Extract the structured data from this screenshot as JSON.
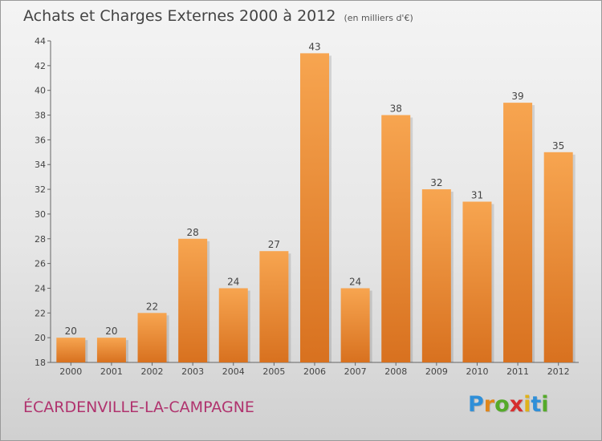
{
  "chart_data": {
    "type": "bar",
    "title": "Achats et Charges Externes 2000 à 2012",
    "subtitle": "(en milliers d'€)",
    "xlabel": "",
    "ylabel": "",
    "categories": [
      "2000",
      "2001",
      "2002",
      "2003",
      "2004",
      "2005",
      "2006",
      "2007",
      "2008",
      "2009",
      "2010",
      "2011",
      "2012"
    ],
    "values": [
      20,
      20,
      22,
      28,
      24,
      27,
      43,
      24,
      38,
      32,
      31,
      39,
      35
    ],
    "value_labels": [
      "20",
      "20",
      "22",
      "28",
      "24",
      "27",
      "43",
      "24",
      "38",
      "32",
      "31",
      "39",
      "35"
    ],
    "ylim": [
      18,
      44
    ],
    "yticks": [
      18,
      20,
      22,
      24,
      26,
      28,
      30,
      32,
      34,
      36,
      38,
      40,
      42,
      44
    ],
    "grid": false,
    "bar_color_top": "#f7a550",
    "bar_color_bottom": "#d8711f"
  },
  "header": {
    "title": "Achats et Charges Externes 2000 à 2012",
    "unit": "(en milliers d'€)"
  },
  "footer": {
    "commune": "ÉCARDENVILLE-LA-CAMPAGNE",
    "logo_letters": [
      {
        "ch": "P",
        "color": "#2f8fd8"
      },
      {
        "ch": "r",
        "color": "#e0861a"
      },
      {
        "ch": "o",
        "color": "#55aa2a"
      },
      {
        "ch": "x",
        "color": "#d62f2f"
      },
      {
        "ch": "i",
        "color": "#e0b21a"
      },
      {
        "ch": "t",
        "color": "#2f8fd8"
      },
      {
        "ch": "i",
        "color": "#55aa2a"
      }
    ],
    "logo_text": "Proxiti"
  }
}
